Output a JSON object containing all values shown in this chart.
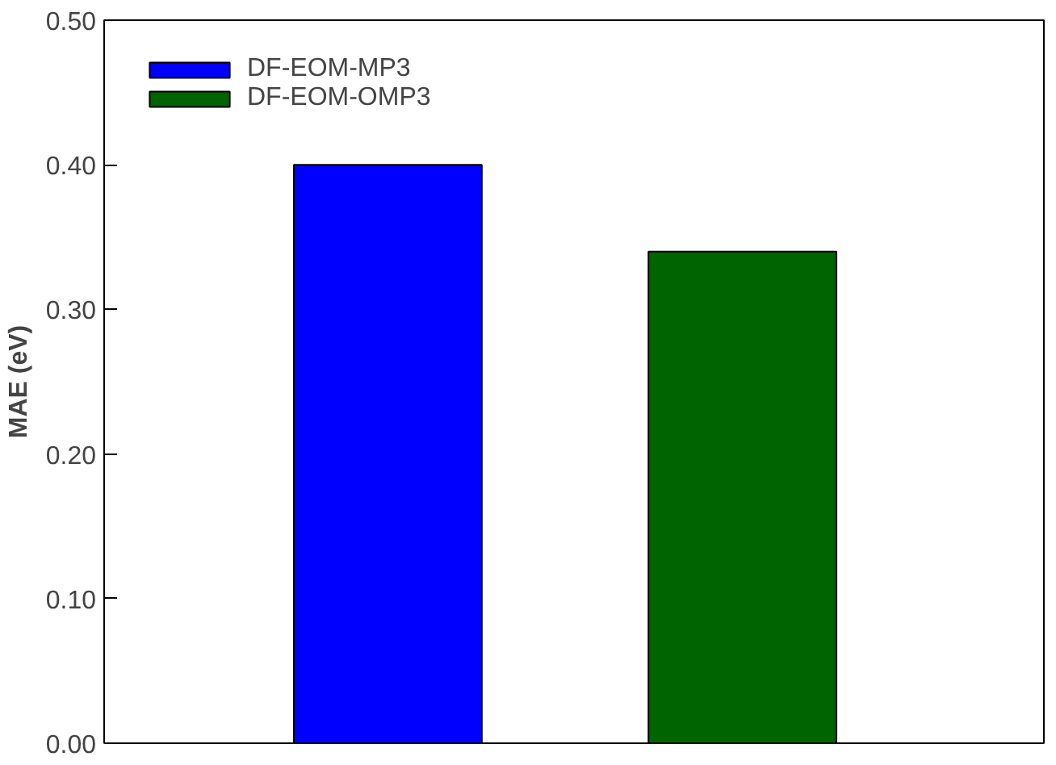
{
  "chart_data": {
    "type": "bar",
    "ylabel": "MAE (eV)",
    "categories": [
      null,
      null
    ],
    "stacked": true,
    "series": [
      {
        "name": "DF-EOM-MP3",
        "color": "#0000ff",
        "values": [
          0.4,
          null
        ]
      },
      {
        "name": "DF-EOM-OMP3",
        "color": "#006400",
        "values": [
          null,
          0.34
        ]
      }
    ],
    "ylim": [
      0,
      0.5
    ],
    "yticks": [
      {
        "value": 0,
        "label": "0.00"
      },
      {
        "value": 0.1,
        "label": "0.10"
      },
      {
        "value": 0.2,
        "label": "0.20"
      },
      {
        "value": 0.3,
        "label": "0.30"
      },
      {
        "value": 0.4,
        "label": "0.40"
      },
      {
        "value": 0.5,
        "label": "0.50"
      }
    ],
    "grid": false,
    "legend": "top left",
    "tick_labels": "y"
  }
}
